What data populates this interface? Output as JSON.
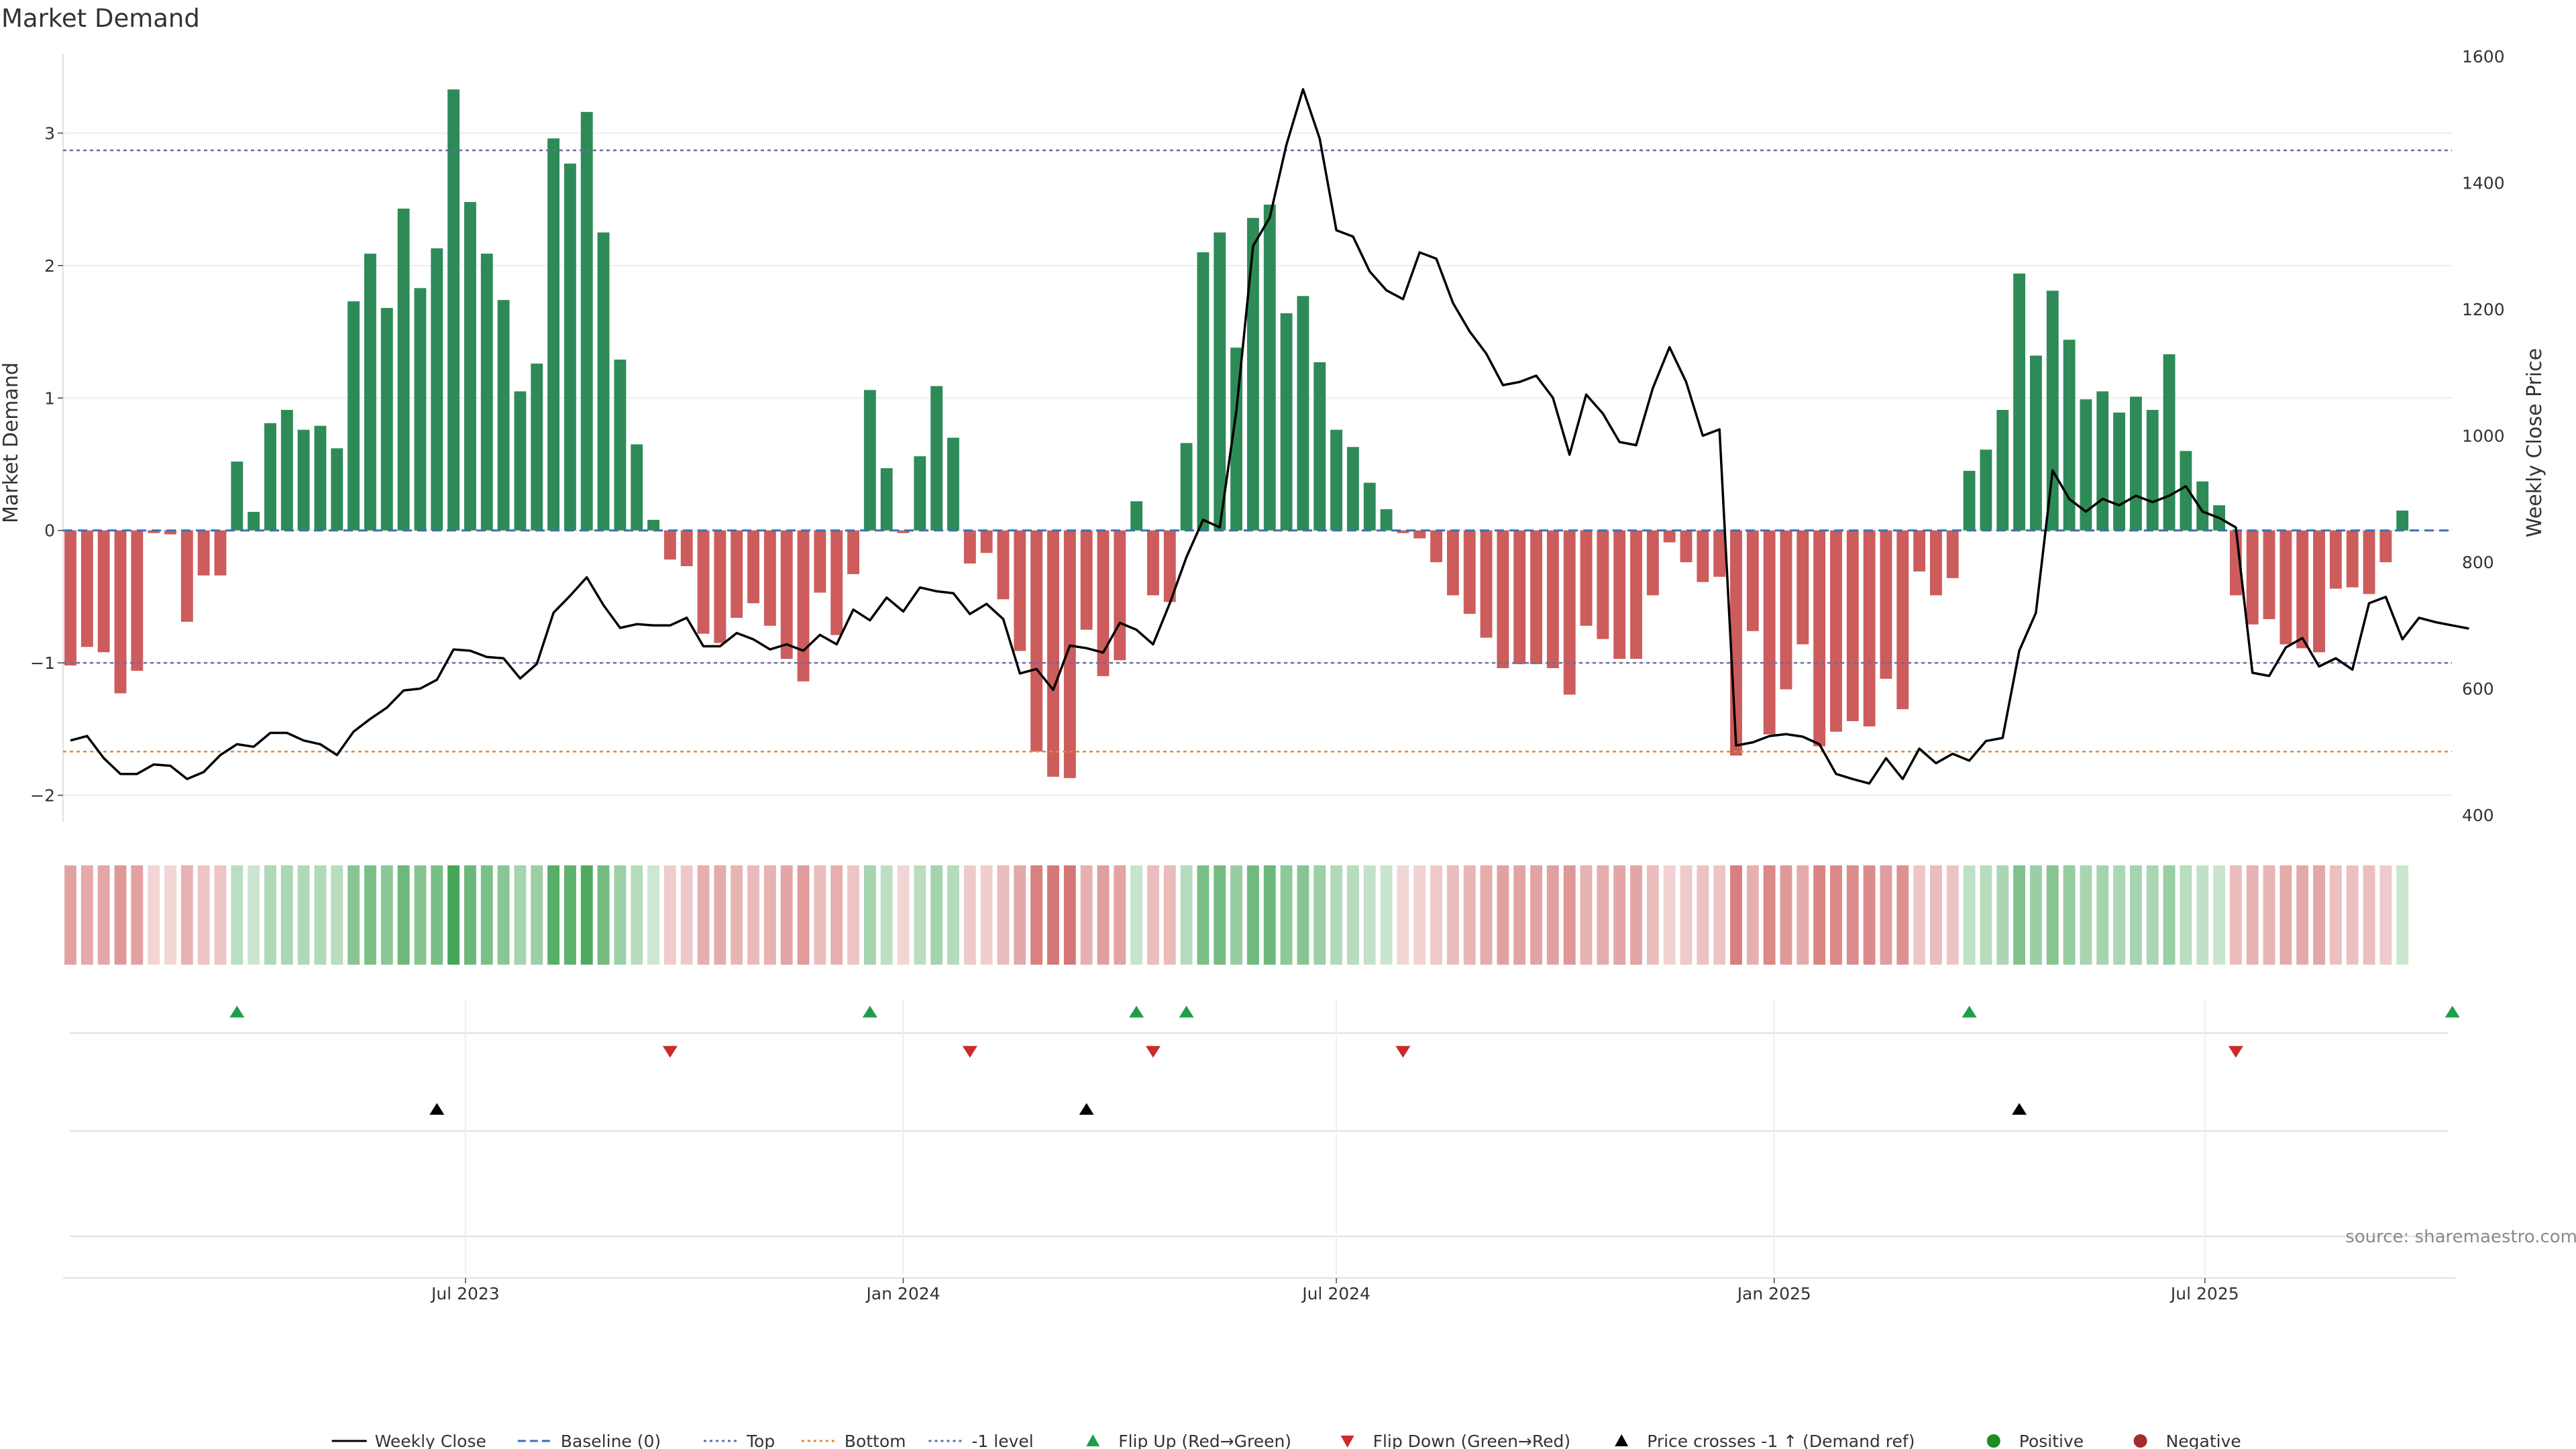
{
  "title": "Market Demand",
  "source": "source: sharemaestro.com",
  "colors": {
    "positive": "#2e8b57",
    "negative": "#cd5c5c",
    "price": "#000000",
    "top": "#6a6aa8",
    "bottom": "#e08a3c",
    "minus_one": "#6a6aa8",
    "baseline": "#3a6fb5",
    "flip_up": "#1f9e4a",
    "flip_down": "#cc2a2a",
    "cross": "#000000",
    "positive_dot": "#228b22",
    "negative_dot": "#a52a2a",
    "grid": "#eeeeee",
    "axis_line": "#d6d6d6"
  },
  "chart_data": {
    "type": "bar",
    "x_start": "2023-01-16",
    "x_step_days": 7,
    "left_axis": {
      "label": "Market Demand",
      "ylim": [
        -2.2,
        3.6
      ],
      "ticks": [
        -2,
        -1,
        0,
        1,
        2,
        3
      ],
      "tick_labels": [
        "−2",
        "−1",
        "0",
        "1",
        "2",
        "3"
      ]
    },
    "right_axis": {
      "label": "Weekly Close Price",
      "ylim": [
        400,
        1600
      ],
      "ticks": [
        400,
        600,
        800,
        1000,
        1200,
        1400,
        1600
      ],
      "tick_labels": [
        "400",
        "600",
        "800",
        "1000",
        "1200",
        "1400",
        "1600"
      ]
    },
    "x_ticks": [
      {
        "date": "2023-07-01",
        "label": "Jul 2023"
      },
      {
        "date": "2024-01-01",
        "label": "Jan 2024"
      },
      {
        "date": "2024-07-01",
        "label": "Jul 2024"
      },
      {
        "date": "2025-01-01",
        "label": "Jan 2025"
      },
      {
        "date": "2025-07-01",
        "label": "Jul 2025"
      }
    ],
    "reference_lines": {
      "top": 2.87,
      "bottom": -1.67,
      "minus_one_level": -1.0,
      "baseline": 0
    },
    "series": [
      {
        "name": "Market Demand",
        "values": [
          -1.02,
          -0.88,
          -0.92,
          -1.23,
          -1.06,
          -0.02,
          -0.03,
          -0.69,
          -0.34,
          -0.34,
          0.52,
          0.14,
          0.81,
          0.91,
          0.76,
          0.79,
          0.62,
          1.73,
          2.09,
          1.68,
          2.43,
          1.83,
          2.13,
          3.33,
          2.48,
          2.09,
          1.74,
          1.05,
          1.26,
          2.96,
          2.77,
          3.16,
          2.25,
          1.29,
          0.65,
          0.08,
          -0.22,
          -0.27,
          -0.78,
          -0.85,
          -0.66,
          -0.55,
          -0.72,
          -0.97,
          -1.14,
          -0.47,
          -0.79,
          -0.33,
          1.06,
          0.47,
          -0.02,
          0.56,
          1.09,
          0.7,
          -0.25,
          -0.17,
          -0.52,
          -0.91,
          -1.67,
          -1.86,
          -1.87,
          -0.75,
          -1.1,
          -0.98,
          0.22,
          -0.49,
          -0.54,
          0.66,
          2.1,
          2.25,
          1.38,
          2.36,
          2.46,
          1.64,
          1.77,
          1.27,
          0.76,
          0.63,
          0.36,
          0.16,
          -0.02,
          -0.06,
          -0.24,
          -0.49,
          -0.63,
          -0.81,
          -1.04,
          -1.01,
          -1.01,
          -1.04,
          -1.24,
          -0.72,
          -0.82,
          -0.97,
          -0.97,
          -0.49,
          -0.09,
          -0.24,
          -0.39,
          -0.35,
          -1.7,
          -0.76,
          -1.54,
          -1.2,
          -0.86,
          -1.63,
          -1.52,
          -1.44,
          -1.48,
          -1.12,
          -1.35,
          -0.31,
          -0.49,
          -0.36,
          0.45,
          0.61,
          0.91,
          1.94,
          1.32,
          1.81,
          1.44,
          0.99,
          1.05,
          0.89,
          1.01,
          0.91,
          1.33,
          0.6,
          0.37,
          0.19,
          -0.49,
          -0.71,
          -0.67,
          -0.86,
          -0.89,
          -0.92,
          -0.44,
          -0.43,
          -0.48,
          -0.24,
          0.15
        ]
      },
      {
        "name": "Weekly Close",
        "axis": "right",
        "values": [
          518,
          525,
          490,
          465,
          465,
          480,
          478,
          457,
          468,
          495,
          512,
          508,
          530,
          530,
          518,
          512,
          495,
          532,
          552,
          570,
          597,
          600,
          614,
          662,
          660,
          650,
          648,
          616,
          639,
          720,
          747,
          776,
          732,
          696,
          702,
          700,
          700,
          712,
          667,
          667,
          688,
          678,
          662,
          670,
          660,
          685,
          670,
          725,
          708,
          744,
          722,
          760,
          754,
          751,
          718,
          734,
          710,
          624,
          631,
          598,
          668,
          664,
          657,
          704,
          693,
          670,
          735,
          808,
          867,
          855,
          1040,
          1300,
          1345,
          1460,
          1548,
          1470,
          1325,
          1315,
          1260,
          1230,
          1216,
          1290,
          1280,
          1210,
          1165,
          1130,
          1080,
          1085,
          1095,
          1060,
          970,
          1065,
          1035,
          990,
          985,
          1075,
          1140,
          1085,
          1000,
          1010,
          510,
          515,
          525,
          528,
          524,
          512,
          465,
          457,
          450,
          490,
          457,
          505,
          482,
          497,
          486,
          517,
          522,
          660,
          720,
          945,
          900,
          880,
          900,
          890,
          905,
          895,
          905,
          920,
          880,
          870,
          855,
          625,
          620,
          665,
          680,
          635,
          648,
          630,
          735,
          745,
          678,
          712,
          705,
          700,
          695
        ]
      }
    ],
    "events": {
      "flip_up_indices": [
        10,
        48,
        64,
        67,
        114,
        143
      ],
      "flip_down_indices": [
        36,
        54,
        65,
        80,
        130
      ],
      "price_cross_indices": [
        22,
        61,
        117
      ]
    },
    "legend": {
      "position": "bottom-center",
      "items": [
        {
          "label": "Weekly Close",
          "kind": "line-solid",
          "color": "#000000"
        },
        {
          "label": "Baseline (0)",
          "kind": "line-dashed",
          "color": "#3a6fb5"
        },
        {
          "label": "Top",
          "kind": "line-dotted",
          "color": "#6a6aa8"
        },
        {
          "label": "Bottom",
          "kind": "line-dotted",
          "color": "#e08a3c"
        },
        {
          "label": "-1 level",
          "kind": "line-dotted",
          "color": "#6a6aa8"
        },
        {
          "label": "Flip Up (Red→Green)",
          "kind": "triangle-up",
          "color": "#1f9e4a"
        },
        {
          "label": "Flip Down (Green→Red)",
          "kind": "triangle-down",
          "color": "#cc2a2a"
        },
        {
          "label": "Price crosses -1 ↑ (Demand ref)",
          "kind": "triangle-up",
          "color": "#000000"
        },
        {
          "label": "Positive",
          "kind": "dot",
          "color": "#228b22"
        },
        {
          "label": "Negative",
          "kind": "dot",
          "color": "#a52a2a"
        }
      ]
    }
  }
}
